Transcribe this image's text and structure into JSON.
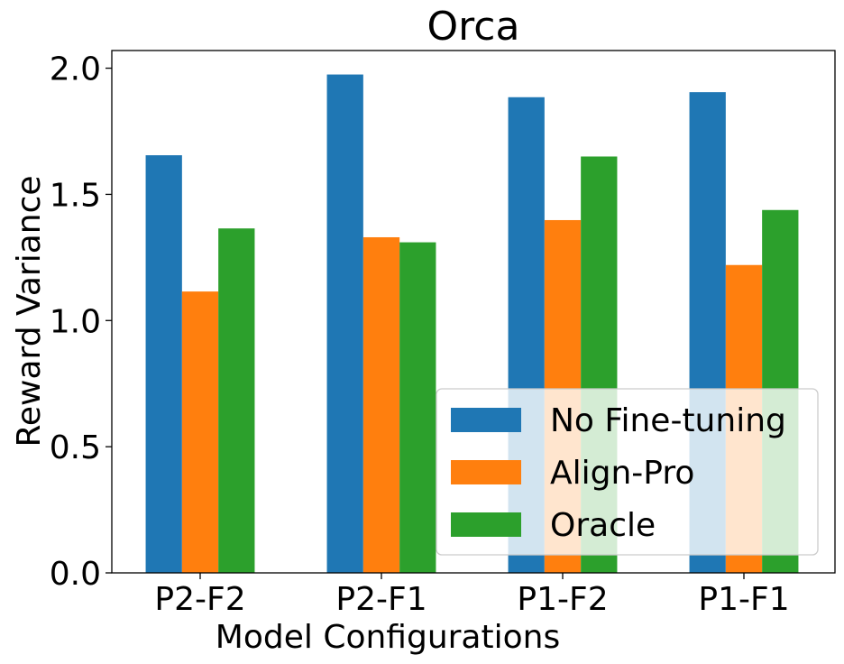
{
  "chart_data": {
    "type": "bar",
    "title": "Orca",
    "xlabel": "Model Configurations",
    "ylabel": "Reward Variance",
    "categories": [
      "P2-F2",
      "P2-F1",
      "P1-F2",
      "P1-F1"
    ],
    "ylim": [
      0,
      2.07
    ],
    "yticks": [
      0.0,
      0.5,
      1.0,
      1.5,
      2.0
    ],
    "ytick_labels": [
      "0.0",
      "0.5",
      "1.0",
      "1.5",
      "2.0"
    ],
    "legend_position": "lower-right",
    "series": [
      {
        "name": "No Fine-tuning",
        "color": "#1f77b4",
        "values": [
          1.655,
          1.975,
          1.885,
          1.905
        ]
      },
      {
        "name": "Align-Pro",
        "color": "#ff7f0e",
        "values": [
          1.115,
          1.33,
          1.398,
          1.22
        ]
      },
      {
        "name": "Oracle",
        "color": "#2ca02c",
        "values": [
          1.365,
          1.31,
          1.65,
          1.438
        ]
      }
    ]
  }
}
